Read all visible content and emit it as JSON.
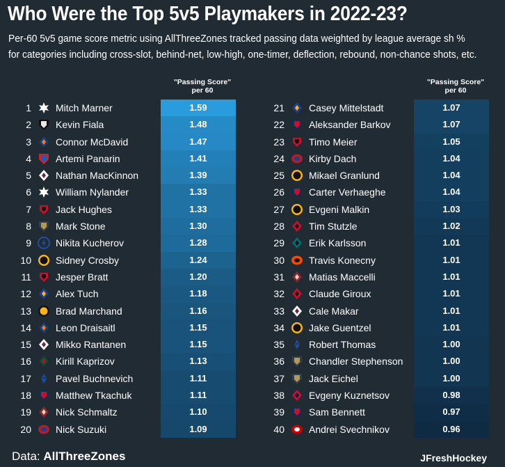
{
  "title": "Who Were the Top 5v5 Playmakers in 2022-23?",
  "subtitle_line1": "Per-60 5v5 game score metric using AllThreeZones tracked passing data weighted by league average sh %",
  "subtitle_line2": "for categories including cross-slot, behind-net, low-high, one-timer, deflection, rebound, non-chance shots, etc.",
  "footer": {
    "data_label": "Data:",
    "data_source": "AllThreeZones",
    "credit": "JFreshHockey"
  },
  "chart_data": {
    "type": "table",
    "column_header": "\"Passing Score\" per 60",
    "players": [
      {
        "rank": "1",
        "name": "Mitch Marner",
        "value": 1.59,
        "display": "1.59",
        "team_icon": "maple-leafs-logo-icon"
      },
      {
        "rank": "2",
        "name": "Kevin Fiala",
        "value": 1.48,
        "display": "1.48",
        "team_icon": "kings-logo-icon"
      },
      {
        "rank": "3",
        "name": "Connor McDavid",
        "value": 1.47,
        "display": "1.47",
        "team_icon": "oilers-logo-icon"
      },
      {
        "rank": "4",
        "name": "Artemi Panarin",
        "value": 1.41,
        "display": "1.41",
        "team_icon": "rangers-logo-icon"
      },
      {
        "rank": "5",
        "name": "Nathan MacKinnon",
        "value": 1.39,
        "display": "1.39",
        "team_icon": "avalanche-logo-icon"
      },
      {
        "rank": "6",
        "name": "William Nylander",
        "value": 1.33,
        "display": "1.33",
        "team_icon": "maple-leafs-logo-icon"
      },
      {
        "rank": "7",
        "name": "Jack Hughes",
        "value": 1.33,
        "display": "1.33",
        "team_icon": "devils-logo-icon"
      },
      {
        "rank": "8",
        "name": "Mark Stone",
        "value": 1.3,
        "display": "1.30",
        "team_icon": "golden-knights-logo-icon"
      },
      {
        "rank": "9",
        "name": "Nikita Kucherov",
        "value": 1.28,
        "display": "1.28",
        "team_icon": "lightning-logo-icon"
      },
      {
        "rank": "10",
        "name": "Sidney Crosby",
        "value": 1.24,
        "display": "1.24",
        "team_icon": "penguins-logo-icon"
      },
      {
        "rank": "11",
        "name": "Jesper Bratt",
        "value": 1.2,
        "display": "1.20",
        "team_icon": "devils-logo-icon"
      },
      {
        "rank": "12",
        "name": "Alex Tuch",
        "value": 1.18,
        "display": "1.18",
        "team_icon": "sabres-logo-icon"
      },
      {
        "rank": "13",
        "name": "Brad Marchand",
        "value": 1.16,
        "display": "1.16",
        "team_icon": "bruins-logo-icon"
      },
      {
        "rank": "14",
        "name": "Leon Draisaitl",
        "value": 1.15,
        "display": "1.15",
        "team_icon": "oilers-logo-icon"
      },
      {
        "rank": "15",
        "name": "Mikko Rantanen",
        "value": 1.15,
        "display": "1.15",
        "team_icon": "avalanche-logo-icon"
      },
      {
        "rank": "16",
        "name": "Kirill Kaprizov",
        "value": 1.13,
        "display": "1.13",
        "team_icon": "wild-logo-icon"
      },
      {
        "rank": "17",
        "name": "Pavel Buchnevich",
        "value": 1.11,
        "display": "1.11",
        "team_icon": "blues-logo-icon"
      },
      {
        "rank": "18",
        "name": "Matthew Tkachuk",
        "value": 1.11,
        "display": "1.11",
        "team_icon": "panthers-logo-icon"
      },
      {
        "rank": "19",
        "name": "Nick Schmaltz",
        "value": 1.1,
        "display": "1.10",
        "team_icon": "coyotes-logo-icon"
      },
      {
        "rank": "20",
        "name": "Nick Suzuki",
        "value": 1.09,
        "display": "1.09",
        "team_icon": "canadiens-logo-icon"
      },
      {
        "rank": "21",
        "name": "Casey Mittelstadt",
        "value": 1.07,
        "display": "1.07",
        "team_icon": "sabres-logo-icon"
      },
      {
        "rank": "22",
        "name": "Aleksander Barkov",
        "value": 1.07,
        "display": "1.07",
        "team_icon": "panthers-logo-icon"
      },
      {
        "rank": "23",
        "name": "Timo Meier",
        "value": 1.05,
        "display": "1.05",
        "team_icon": "devils-logo-icon"
      },
      {
        "rank": "24",
        "name": "Kirby Dach",
        "value": 1.04,
        "display": "1.04",
        "team_icon": "canadiens-logo-icon"
      },
      {
        "rank": "25",
        "name": "Mikael Granlund",
        "value": 1.04,
        "display": "1.04",
        "team_icon": "penguins-logo-icon"
      },
      {
        "rank": "26",
        "name": "Carter Verhaeghe",
        "value": 1.04,
        "display": "1.04",
        "team_icon": "panthers-logo-icon"
      },
      {
        "rank": "27",
        "name": "Evgeni Malkin",
        "value": 1.03,
        "display": "1.03",
        "team_icon": "penguins-logo-icon"
      },
      {
        "rank": "28",
        "name": "Tim Stutzle",
        "value": 1.02,
        "display": "1.02",
        "team_icon": "senators-logo-icon"
      },
      {
        "rank": "29",
        "name": "Erik Karlsson",
        "value": 1.01,
        "display": "1.01",
        "team_icon": "sharks-logo-icon"
      },
      {
        "rank": "30",
        "name": "Travis Konecny",
        "value": 1.01,
        "display": "1.01",
        "team_icon": "flyers-logo-icon"
      },
      {
        "rank": "31",
        "name": "Matias Maccelli",
        "value": 1.01,
        "display": "1.01",
        "team_icon": "coyotes-logo-icon"
      },
      {
        "rank": "32",
        "name": "Claude Giroux",
        "value": 1.01,
        "display": "1.01",
        "team_icon": "senators-logo-icon"
      },
      {
        "rank": "33",
        "name": "Cale Makar",
        "value": 1.01,
        "display": "1.01",
        "team_icon": "avalanche-logo-icon"
      },
      {
        "rank": "34",
        "name": "Jake Guentzel",
        "value": 1.01,
        "display": "1.01",
        "team_icon": "penguins-logo-icon"
      },
      {
        "rank": "35",
        "name": "Robert Thomas",
        "value": 1.0,
        "display": "1.00",
        "team_icon": "blues-logo-icon"
      },
      {
        "rank": "36",
        "name": "Chandler Stephenson",
        "value": 1.0,
        "display": "1.00",
        "team_icon": "golden-knights-logo-icon"
      },
      {
        "rank": "37",
        "name": "Jack Eichel",
        "value": 1.0,
        "display": "1.00",
        "team_icon": "golden-knights-logo-icon"
      },
      {
        "rank": "38",
        "name": "Evgeny Kuznetsov",
        "value": 0.98,
        "display": "0.98",
        "team_icon": "capitals-logo-icon"
      },
      {
        "rank": "39",
        "name": "Sam Bennett",
        "value": 0.97,
        "display": "0.97",
        "team_icon": "panthers-logo-icon"
      },
      {
        "rank": "40",
        "name": "Andrei Svechnikov",
        "value": 0.96,
        "display": "0.96",
        "team_icon": "hurricanes-logo-icon"
      }
    ],
    "color_scale": {
      "low": "#0f2a43",
      "high": "#2a9bdd"
    }
  },
  "team_colors": {
    "maple-leafs-logo-icon": [
      "#ffffff",
      "#1a4a9c"
    ],
    "kings-logo-icon": [
      "#e8e8e8",
      "#111111"
    ],
    "oilers-logo-icon": [
      "#1a3e7a",
      "#f47a20"
    ],
    "rangers-logo-icon": [
      "#1f5bb5",
      "#d4202c"
    ],
    "avalanche-logo-icon": [
      "#ffffff",
      "#6f263d"
    ],
    "devils-logo-icon": [
      "#c8102e",
      "#111111"
    ],
    "golden-knights-logo-icon": [
      "#b4975a",
      "#333f48"
    ],
    "lightning-logo-icon": [
      "#1e4fa0",
      "#ffffff"
    ],
    "penguins-logo-icon": [
      "#111111",
      "#fcb514"
    ],
    "sabres-logo-icon": [
      "#1f3f8f",
      "#fcb514"
    ],
    "bruins-logo-icon": [
      "#fcb514",
      "#111111"
    ],
    "wild-logo-icon": [
      "#154734",
      "#a6192e"
    ],
    "blues-logo-icon": [
      "#1b4ea0",
      "#ffffff"
    ],
    "panthers-logo-icon": [
      "#c8102e",
      "#0d2f55"
    ],
    "coyotes-logo-icon": [
      "#8c2633",
      "#e2d6b5"
    ],
    "canadiens-logo-icon": [
      "#af1e2d",
      "#1b3f8c"
    ],
    "senators-logo-icon": [
      "#c8102e",
      "#111111"
    ],
    "sharks-logo-icon": [
      "#006d75",
      "#111111"
    ],
    "flyers-logo-icon": [
      "#f74902",
      "#111111"
    ],
    "capitals-logo-icon": [
      "#c8102e",
      "#041e42"
    ],
    "hurricanes-logo-icon": [
      "#cc0000",
      "#ffffff"
    ]
  }
}
